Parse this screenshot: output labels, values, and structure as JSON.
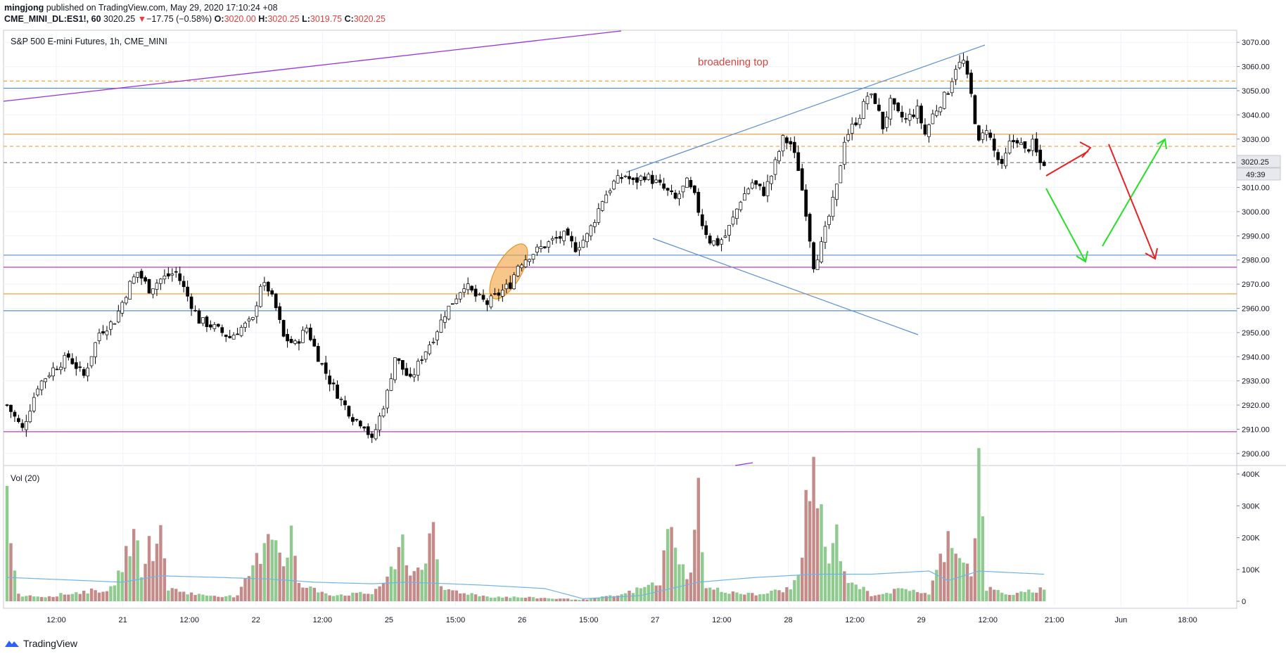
{
  "header": {
    "author": "mingjong",
    "published": "published on TradingView.com, May 29, 2020 17:10:24 +08",
    "symbol": "CME_MINI_DL:ES1!, 60",
    "last": "3020.25",
    "change_arrow": "▼",
    "change": "−17.75 (−0.58%)",
    "o_label": "O:",
    "o": "3020.00",
    "h_label": "H:",
    "h": "3020.25",
    "l_label": "L:",
    "l": "3019.75",
    "c_label": "C:",
    "c": "3020.25"
  },
  "chart_title": "S&P 500 E-mini Futures, 1h, CME_MINI",
  "annotation": "broadening top",
  "price_label": "3020.25",
  "countdown": "49:39",
  "volume_label": "Vol (20)",
  "footer": {
    "brand": "TradingView"
  },
  "colors": {
    "up": "#ffffff",
    "down": "#000000",
    "vol_up": "#8fca8f",
    "vol_down": "#c48b89",
    "ma": "#6fb4e8",
    "support": "#5b8fd6",
    "magenta": "#c13cc1",
    "orange": "#f2a13b",
    "accent_red": "#e0403f",
    "arrow_green": "#24e024",
    "arrow_red": "#e82222"
  },
  "chart_data": {
    "type": "candlestick",
    "title": "S&P 500 E-mini Futures, 1h, CME_MINI",
    "ylim": [
      2895,
      3075
    ],
    "price_ticks": [
      "3070.00",
      "3060.00",
      "3050.00",
      "3040.00",
      "3030.00",
      "3020.00",
      "3010.00",
      "3000.00",
      "2990.00",
      "2980.00",
      "2970.00",
      "2960.00",
      "2950.00",
      "2940.00",
      "2930.00",
      "2920.00",
      "2910.00",
      "2900.00"
    ],
    "volume_ticks": [
      "400K",
      "300K",
      "200K",
      "100K",
      "0"
    ],
    "volume_ylim": [
      0,
      420000
    ],
    "x_ticks": [
      "12:00",
      "21",
      "12:00",
      "22",
      "12:00",
      "25",
      "15:00",
      "26",
      "15:00",
      "27",
      "12:00",
      "28",
      "12:00",
      "29",
      "12:00",
      "21:00",
      "Jun",
      "18:00"
    ],
    "horizontal_levels": [
      {
        "price": 3051,
        "color": "blue"
      },
      {
        "price": 2982,
        "color": "blue"
      },
      {
        "price": 2959,
        "color": "blue"
      },
      {
        "price": 2977,
        "color": "magenta"
      },
      {
        "price": 2909,
        "color": "magenta"
      },
      {
        "price": 3032,
        "color": "orange"
      },
      {
        "price": 2966,
        "color": "orange"
      },
      {
        "price": 3054,
        "color": "orange-dashed"
      },
      {
        "price": 3027,
        "color": "orange-dashed"
      },
      {
        "price": 3020.25,
        "color": "gray-dashed"
      }
    ],
    "close_path": [
      [
        0,
        2920
      ],
      [
        4,
        2910
      ],
      [
        8,
        2928
      ],
      [
        12,
        2935
      ],
      [
        16,
        2940
      ],
      [
        20,
        2932
      ],
      [
        24,
        2950
      ],
      [
        28,
        2955
      ],
      [
        32,
        2970
      ],
      [
        34,
        2975
      ],
      [
        37,
        2968
      ],
      [
        40,
        2972
      ],
      [
        44,
        2975
      ],
      [
        47,
        2965
      ],
      [
        50,
        2955
      ],
      [
        53,
        2953
      ],
      [
        56,
        2950
      ],
      [
        58,
        2948
      ],
      [
        61,
        2952
      ],
      [
        64,
        2955
      ],
      [
        66,
        2970
      ],
      [
        68,
        2968
      ],
      [
        70,
        2960
      ],
      [
        72,
        2948
      ],
      [
        75,
        2945
      ],
      [
        78,
        2952
      ],
      [
        81,
        2940
      ],
      [
        84,
        2930
      ],
      [
        87,
        2922
      ],
      [
        90,
        2915
      ],
      [
        93,
        2912
      ],
      [
        95,
        2905
      ],
      [
        97,
        2915
      ],
      [
        99,
        2925
      ],
      [
        101,
        2940
      ],
      [
        103,
        2935
      ],
      [
        105,
        2930
      ],
      [
        108,
        2940
      ],
      [
        111,
        2948
      ],
      [
        114,
        2958
      ],
      [
        117,
        2965
      ],
      [
        119,
        2970
      ],
      [
        122,
        2965
      ],
      [
        125,
        2962
      ],
      [
        128,
        2966
      ],
      [
        131,
        2970
      ],
      [
        133,
        2978
      ],
      [
        136,
        2982
      ],
      [
        139,
        2985
      ],
      [
        142,
        2988
      ],
      [
        145,
        2990
      ],
      [
        148,
        2985
      ],
      [
        151,
        2990
      ],
      [
        153,
        2997
      ],
      [
        155,
        3005
      ],
      [
        158,
        3012
      ],
      [
        161,
        3015
      ],
      [
        163,
        3012
      ],
      [
        166,
        3015
      ],
      [
        169,
        3012
      ],
      [
        172,
        3008
      ],
      [
        174,
        3005
      ],
      [
        177,
        3012
      ],
      [
        179,
        3006
      ],
      [
        181,
        2995
      ],
      [
        183,
        2988
      ],
      [
        185,
        2987
      ],
      [
        187,
        2990
      ],
      [
        189,
        2997
      ],
      [
        191,
        3005
      ],
      [
        194,
        3012
      ],
      [
        197,
        3008
      ],
      [
        199,
        3015
      ],
      [
        202,
        3030
      ],
      [
        204,
        3028
      ],
      [
        206,
        3018
      ],
      [
        208,
        3000
      ],
      [
        210,
        2978
      ],
      [
        212,
        2986
      ],
      [
        214,
        2998
      ],
      [
        216,
        3010
      ],
      [
        218,
        3030
      ],
      [
        220,
        3035
      ],
      [
        222,
        3040
      ],
      [
        224,
        3048
      ],
      [
        226,
        3046
      ],
      [
        228,
        3035
      ],
      [
        230,
        3045
      ],
      [
        232,
        3040
      ],
      [
        234,
        3038
      ],
      [
        237,
        3042
      ],
      [
        239,
        3032
      ],
      [
        241,
        3040
      ],
      [
        243,
        3045
      ],
      [
        245,
        3050
      ],
      [
        247,
        3060
      ],
      [
        249,
        3062
      ],
      [
        251,
        3048
      ],
      [
        253,
        3028
      ],
      [
        255,
        3035
      ],
      [
        257,
        3025
      ],
      [
        259,
        3018
      ],
      [
        261,
        3028
      ],
      [
        263,
        3030
      ],
      [
        265,
        3025
      ],
      [
        267,
        3028
      ],
      [
        269,
        3020
      ],
      [
        270,
        3020.25
      ]
    ],
    "volume_path": [
      [
        0,
        330000
      ],
      [
        3,
        20000
      ],
      [
        10,
        15000
      ],
      [
        20,
        30000
      ],
      [
        28,
        40000
      ],
      [
        30,
        120000
      ],
      [
        33,
        210000
      ],
      [
        35,
        100000
      ],
      [
        37,
        180000
      ],
      [
        39,
        150000
      ],
      [
        40,
        230000
      ],
      [
        42,
        40000
      ],
      [
        50,
        20000
      ],
      [
        60,
        15000
      ],
      [
        66,
        150000
      ],
      [
        68,
        240000
      ],
      [
        70,
        200000
      ],
      [
        72,
        120000
      ],
      [
        74,
        220000
      ],
      [
        76,
        50000
      ],
      [
        85,
        20000
      ],
      [
        95,
        25000
      ],
      [
        101,
        100000
      ],
      [
        103,
        200000
      ],
      [
        105,
        80000
      ],
      [
        108,
        120000
      ],
      [
        111,
        200000
      ],
      [
        113,
        40000
      ],
      [
        125,
        15000
      ],
      [
        140,
        10000
      ],
      [
        150,
        5000
      ],
      [
        160,
        20000
      ],
      [
        170,
        60000
      ],
      [
        172,
        210000
      ],
      [
        174,
        200000
      ],
      [
        176,
        100000
      ],
      [
        178,
        80000
      ],
      [
        180,
        340000
      ],
      [
        182,
        40000
      ],
      [
        195,
        20000
      ],
      [
        204,
        40000
      ],
      [
        206,
        80000
      ],
      [
        208,
        280000
      ],
      [
        210,
        380000
      ],
      [
        212,
        280000
      ],
      [
        214,
        100000
      ],
      [
        216,
        230000
      ],
      [
        218,
        80000
      ],
      [
        225,
        20000
      ],
      [
        235,
        40000
      ],
      [
        240,
        20000
      ],
      [
        245,
        200000
      ],
      [
        247,
        180000
      ],
      [
        249,
        140000
      ],
      [
        251,
        80000
      ],
      [
        253,
        420000
      ],
      [
        255,
        40000
      ],
      [
        262,
        20000
      ],
      [
        270,
        40000
      ]
    ],
    "ma_path": [
      [
        0,
        75000
      ],
      [
        30,
        60000
      ],
      [
        40,
        80000
      ],
      [
        55,
        75000
      ],
      [
        68,
        70000
      ],
      [
        80,
        60000
      ],
      [
        95,
        55000
      ],
      [
        104,
        60000
      ],
      [
        115,
        55000
      ],
      [
        125,
        50000
      ],
      [
        140,
        40000
      ],
      [
        150,
        8000
      ],
      [
        165,
        18000
      ],
      [
        180,
        60000
      ],
      [
        195,
        75000
      ],
      [
        210,
        85000
      ],
      [
        225,
        85000
      ],
      [
        240,
        95000
      ],
      [
        245,
        65000
      ],
      [
        253,
        95000
      ],
      [
        270,
        85000
      ]
    ]
  }
}
